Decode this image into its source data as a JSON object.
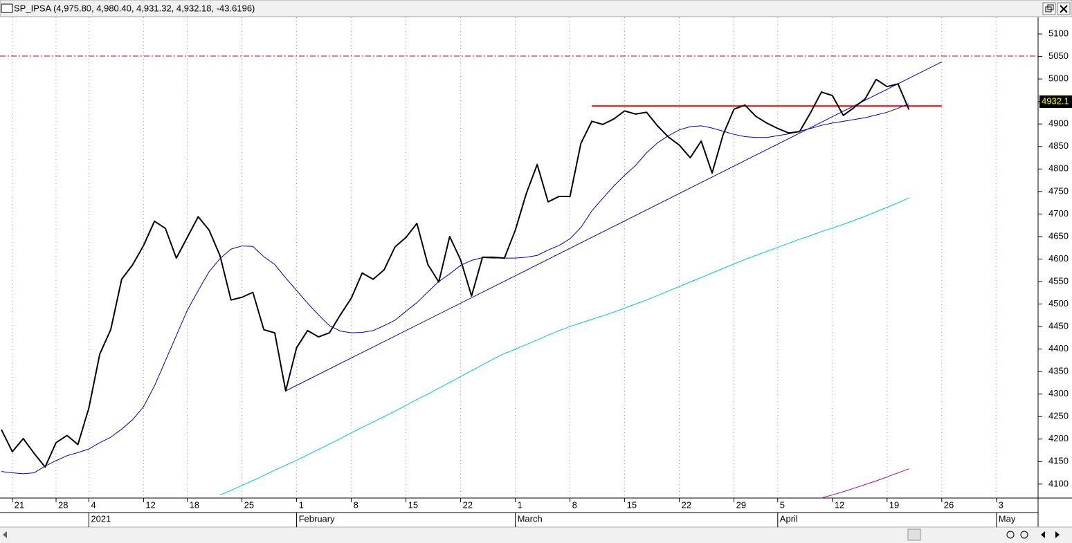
{
  "chart_data": {
    "type": "line",
    "title": "SP_IPSA (4,975.80, 4,980.40, 4,931.32, 4,932.18, -43.6196)",
    "last_label": "4932.1",
    "categories": [
      null,
      "21",
      null,
      null,
      null,
      "28",
      null,
      null,
      "4",
      null,
      null,
      null,
      null,
      "12",
      null,
      null,
      null,
      "18",
      null,
      null,
      null,
      null,
      "25",
      null,
      null,
      null,
      null,
      "1",
      null,
      null,
      null,
      null,
      "8",
      null,
      null,
      null,
      null,
      "15",
      null,
      null,
      null,
      null,
      "22",
      null,
      null,
      null,
      null,
      "1",
      null,
      null,
      null,
      null,
      "8",
      null,
      null,
      null,
      null,
      "15",
      null,
      null,
      null,
      null,
      "22",
      null,
      null,
      null,
      null,
      "29",
      null,
      null,
      null,
      "5",
      null,
      null,
      null,
      null,
      "12",
      null,
      null,
      null,
      null,
      "19",
      null,
      null,
      null,
      null,
      "26",
      null,
      null,
      null,
      null,
      "3",
      null,
      null,
      null
    ],
    "x_periods": [
      null,
      null,
      null,
      null,
      null,
      null,
      null,
      null,
      "2021",
      null,
      null,
      null,
      null,
      null,
      null,
      null,
      null,
      null,
      null,
      null,
      null,
      null,
      null,
      null,
      null,
      null,
      null,
      "February",
      null,
      null,
      null,
      null,
      null,
      null,
      null,
      null,
      null,
      null,
      null,
      null,
      null,
      null,
      null,
      null,
      null,
      null,
      null,
      "March",
      null,
      null,
      null,
      null,
      null,
      null,
      null,
      null,
      null,
      null,
      null,
      null,
      null,
      null,
      null,
      null,
      null,
      null,
      null,
      null,
      null,
      null,
      null,
      "April",
      null,
      null,
      null,
      null,
      null,
      null,
      null,
      null,
      null,
      null,
      null,
      null,
      null,
      null,
      null,
      null,
      null,
      null,
      null,
      "May",
      null,
      null,
      null
    ],
    "series": [
      {
        "color": "#000000",
        "width": 2,
        "values": [
          4221,
          4172,
          4201,
          4168,
          4138,
          4192,
          4208,
          4188,
          4269,
          4389,
          4443,
          4555,
          4587,
          4630,
          4684,
          4668,
          4602,
          4648,
          4694,
          4664,
          4607,
          4509,
          4515,
          4526,
          4443,
          4436,
          4307,
          4403,
          4441,
          4427,
          4436,
          4476,
          4513,
          4569,
          4555,
          4576,
          4627,
          4648,
          4679,
          4588,
          4549,
          4650,
          4598,
          4518,
          4604,
          4604,
          4602,
          4664,
          4745,
          4810,
          4727,
          4739,
          4739,
          4857,
          4906,
          4899,
          4911,
          4929,
          4922,
          4926,
          4896,
          4871,
          4853,
          4825,
          4862,
          4791,
          4876,
          4933,
          4942,
          4917,
          4902,
          4890,
          4880,
          4883,
          4925,
          4971,
          4963,
          4919,
          4937,
          4956,
          4999,
          4983,
          4989,
          4932.1,
          null,
          null,
          null,
          null,
          null,
          null,
          null,
          null,
          null,
          null,
          null
        ]
      },
      {
        "color": "#0000a8",
        "width": 1,
        "values": [
          4128,
          4125,
          4123,
          4125,
          4140,
          4152,
          4163,
          4170,
          4178,
          4192,
          4204,
          4222,
          4243,
          4272,
          4318,
          4374,
          4430,
          4486,
          4530,
          4572,
          4601,
          4622,
          4629,
          4628,
          4605,
          4588,
          4558,
          4530,
          4502,
          4476,
          4452,
          4440,
          4436,
          4437,
          4441,
          4452,
          4464,
          4484,
          4503,
          4527,
          4550,
          4567,
          4586,
          4597,
          4603,
          4602,
          4602,
          4602,
          4604,
          4608,
          4620,
          4630,
          4645,
          4670,
          4707,
          4735,
          4762,
          4786,
          4808,
          4836,
          4858,
          4874,
          4887,
          4894,
          4896,
          4891,
          4884,
          4877,
          4872,
          4870,
          4870,
          4874,
          4878,
          4884,
          4890,
          4897,
          4902,
          4906,
          4910,
          4914,
          4920,
          4926,
          4935,
          4945,
          null,
          null,
          null,
          null,
          null,
          null,
          null,
          null,
          null,
          null,
          null
        ]
      },
      {
        "color": "#00c8c8",
        "width": 1,
        "values": [
          null,
          null,
          null,
          null,
          null,
          null,
          null,
          null,
          null,
          null,
          null,
          null,
          null,
          null,
          null,
          null,
          null,
          null,
          null,
          null,
          4076,
          4086,
          4097,
          4108,
          4119,
          4131,
          4142,
          4153,
          4165,
          4177,
          4189,
          4201,
          4214,
          4226,
          4238,
          4250,
          4262,
          4275,
          4288,
          4300,
          4313,
          4326,
          4339,
          4352,
          4365,
          4378,
          4390,
          4400,
          4410,
          4420,
          4431,
          4441,
          4450,
          4458,
          4466,
          4474,
          4482,
          4491,
          4500,
          4509,
          4519,
          4529,
          4539,
          4549,
          4559,
          4569,
          4579,
          4589,
          4599,
          4608,
          4617,
          4626,
          4635,
          4644,
          4652,
          4661,
          4669,
          4677,
          4686,
          4695,
          4705,
          4715,
          4725,
          4736,
          null,
          null,
          null,
          null,
          null,
          null,
          null,
          null,
          null,
          null,
          null
        ]
      },
      {
        "color": "#a000a0",
        "width": 1,
        "values": [
          null,
          null,
          null,
          null,
          null,
          null,
          null,
          null,
          null,
          null,
          null,
          null,
          null,
          null,
          null,
          null,
          null,
          null,
          null,
          null,
          null,
          null,
          null,
          null,
          null,
          null,
          null,
          null,
          null,
          null,
          null,
          null,
          null,
          null,
          null,
          null,
          null,
          null,
          null,
          null,
          null,
          null,
          null,
          null,
          null,
          null,
          null,
          null,
          null,
          null,
          null,
          null,
          null,
          null,
          null,
          null,
          null,
          null,
          null,
          null,
          null,
          null,
          null,
          null,
          null,
          null,
          null,
          null,
          null,
          null,
          null,
          null,
          null,
          null,
          null,
          4069,
          4076,
          4083,
          4091,
          4099,
          4107,
          4116,
          4125,
          4134,
          null,
          null,
          null,
          null,
          null,
          null,
          null,
          null,
          null,
          null,
          null
        ]
      }
    ],
    "trendlines": [
      {
        "color": "#0000c0",
        "x": [
          26,
          86
        ],
        "values": [
          4307,
          5038
        ]
      },
      {
        "color": "#e00000",
        "x": [
          54,
          86
        ],
        "values": [
          4940,
          4940
        ]
      }
    ],
    "hline": {
      "color": "#c00000",
      "value": 5051
    },
    "ylim": [
      4069,
      5137
    ],
    "yticks": [
      4100,
      4150,
      4200,
      4250,
      4300,
      4350,
      4400,
      4450,
      4500,
      4550,
      4600,
      4650,
      4700,
      4750,
      4800,
      4850,
      4900,
      4950,
      5000,
      5050,
      5100
    ]
  }
}
